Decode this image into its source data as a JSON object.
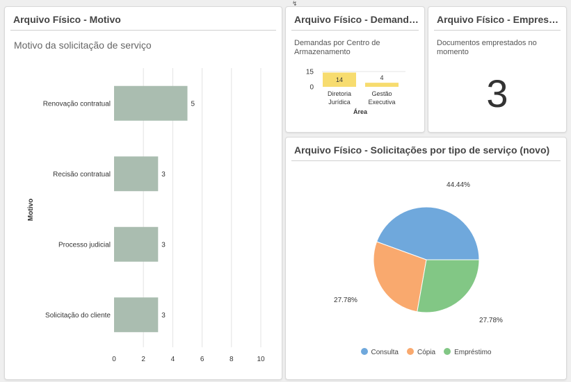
{
  "cursor": "↯",
  "motivo": {
    "title": "Arquivo Físico - Motivo",
    "subtitle": "Motivo da solicitação de serviço"
  },
  "demandas": {
    "title": "Arquivo Físico - Demandas",
    "subtitle_line1": "Demandas por Centro de",
    "subtitle_line2": "Armazenamento"
  },
  "emprestimos": {
    "title": "Arquivo Físico - Emprestimos",
    "subtitle_line1": "Documentos emprestados no",
    "subtitle_line2": "momento",
    "value": "3"
  },
  "tipo": {
    "title": "Arquivo Físico - Solicitações por tipo de serviço (novo)"
  },
  "chart_data": [
    {
      "type": "bar",
      "orientation": "horizontal",
      "categories": [
        "Renovação contratual",
        "Recisão contratual",
        "Processo judicial",
        "Solicitação do cliente"
      ],
      "values": [
        5,
        3,
        3,
        3
      ],
      "ylabel": "Motivo",
      "xlim": [
        0,
        10
      ],
      "xticks": [
        "0",
        "2",
        "4",
        "6",
        "8",
        "10"
      ],
      "color": "#aabdb0",
      "grid": true
    },
    {
      "type": "bar",
      "categories": [
        "Diretoria Jurídica",
        "Gestão Executiva"
      ],
      "category_lines": [
        [
          "Diretoria",
          "Jurídica"
        ],
        [
          "Gestão",
          "Executiva"
        ]
      ],
      "values": [
        14,
        4
      ],
      "xlabel": "Área",
      "ylim": [
        0,
        15
      ],
      "yticks": [
        "0",
        "15"
      ],
      "color": "#f7dc6f"
    },
    {
      "type": "pie",
      "labels": [
        "Consulta",
        "Cópia",
        "Empréstimo"
      ],
      "values": [
        44.44,
        27.78,
        27.78
      ],
      "value_labels": [
        "44.44%",
        "27.78%",
        "27.78%"
      ],
      "colors": [
        "#6fa8dc",
        "#f9a96e",
        "#82c785"
      ],
      "legend_position": "bottom"
    }
  ]
}
